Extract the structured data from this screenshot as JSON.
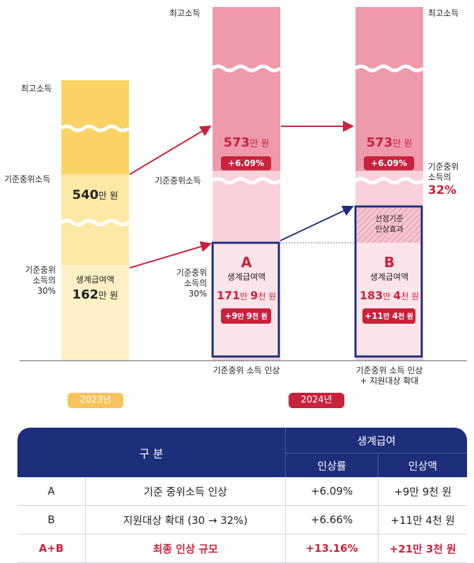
{
  "chart_data": {
    "type": "bar",
    "title": "",
    "columns": [
      {
        "name": "2023년",
        "segments": [
          {
            "label": "최고소득"
          },
          {
            "label": "기준중위소득",
            "value": "540만 원"
          },
          {
            "label": "기준중위 소득의 30%",
            "value": "162만 원",
            "name": "생계급여액"
          }
        ]
      },
      {
        "name": "기준중위 소득 인상",
        "segments": [
          {
            "label": "최고소득"
          },
          {
            "label": "기준중위소득",
            "value": "573만 원",
            "change": "+6.09%"
          },
          {
            "label": "기준중위 소득의 30%",
            "value": "171만 9천 원",
            "name": "생계급여액",
            "tag": "A",
            "change": "+9만 9천 원"
          }
        ]
      },
      {
        "name": "기준중위 소득 인상 + 지원대상 확대",
        "segments": [
          {
            "label": "최고소득"
          },
          {
            "label": "기준중위 소득의 32%",
            "value": "573만 원",
            "change": "+6.09%"
          },
          {
            "label": "선정기준 인상효과"
          },
          {
            "value": "183만 4천 원",
            "name": "생계급여액",
            "tag": "B",
            "change": "+11만 4천 원"
          }
        ]
      }
    ]
  },
  "labels": {
    "top_income": "최고소득",
    "median": "기준중위소득",
    "pct30_l1": "기준중위",
    "pct30_l2": "소득의",
    "pct30_l3": "30%",
    "pct32_l1": "기준중위",
    "pct32_l2": "소득의",
    "pct32_l3": "32%",
    "benefit": "생계급여액",
    "effect_l1": "선정기준",
    "effect_l2": "인상효과",
    "caption_mid": "기준중위 소득 인상",
    "caption_right_l1": "기준중위 소득 인상",
    "caption_right_l2": "+ 지원대상 확대",
    "year_2023": "2023년",
    "year_2024": "2024년"
  },
  "values": {
    "v540_num": "540",
    "v540_unit": "만 원",
    "v162_num": "162",
    "v162_unit": "만 원",
    "v573_num": "573",
    "v573_unit": "만 원",
    "chg_609": "+6.09%",
    "tag_a": "A",
    "tag_b": "B",
    "a_n1": "171",
    "a_u1": "만 ",
    "a_n2": "9",
    "a_u2": "천 원",
    "a_chg_n1": "+9",
    "a_chg_u1": "만 ",
    "a_chg_n2": "9",
    "a_chg_u2": "천 원",
    "b_n1": "183",
    "b_u1": "만 ",
    "b_n2": "4",
    "b_u2": "천 원",
    "b_chg_n1": "+11",
    "b_chg_u1": "만 ",
    "b_chg_n2": "4",
    "b_chg_u2": "천 원"
  },
  "table": {
    "header_category": "구 분",
    "header_group": "생계급여",
    "header_rate": "인상률",
    "header_amount": "인상액",
    "rows": [
      {
        "key": "A",
        "desc": "기준 중위소득 인상",
        "rate": "+6.09%",
        "amount": "+9만 9천 원"
      },
      {
        "key": "B",
        "desc": "지원대상 확대 (30 → 32%)",
        "rate": "+6.66%",
        "amount": "+11만 4천 원"
      },
      {
        "key": "A+B",
        "desc": "최종 인상 규모",
        "rate": "+13.16%",
        "amount": "+21만 3천 원"
      }
    ]
  },
  "colors": {
    "yellow_dark": "#fbd264",
    "yellow_light": "#fde9a6",
    "pink_dark": "#ef9aab",
    "pink_light": "#f9d1da",
    "navy": "#1d2f7a",
    "red": "#c8223d",
    "year_2023": "#f7c35a",
    "year_2024": "#c8223d"
  }
}
